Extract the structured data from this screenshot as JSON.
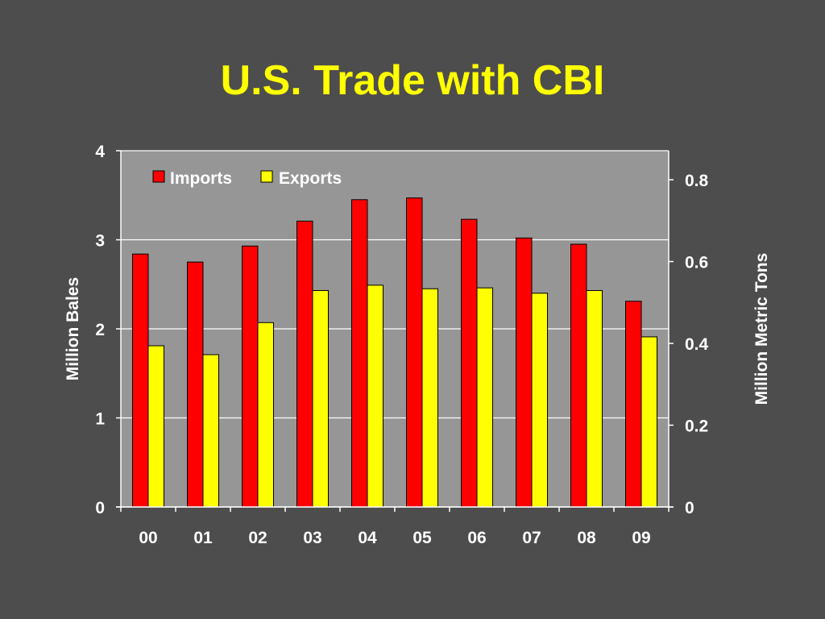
{
  "slide": {
    "title": "U.S. Trade with CBI"
  },
  "chart_data": {
    "type": "bar",
    "title": "",
    "categories": [
      "00",
      "01",
      "02",
      "03",
      "04",
      "05",
      "06",
      "07",
      "08",
      "09"
    ],
    "series": [
      {
        "name": "Imports",
        "axis": "left",
        "color": "#ff0000",
        "values": [
          2.84,
          2.75,
          2.93,
          3.21,
          3.45,
          3.47,
          3.23,
          3.02,
          2.95,
          2.31
        ]
      },
      {
        "name": "Exports",
        "axis": "left",
        "color": "#ffff00",
        "values": [
          1.81,
          1.71,
          2.07,
          2.43,
          2.49,
          2.45,
          2.46,
          2.4,
          2.43,
          1.91
        ]
      }
    ],
    "ylabel": "Million Bales",
    "ylim": [
      0,
      4
    ],
    "yticks": [
      "0",
      "1",
      "2",
      "3",
      "4"
    ],
    "y2label": "Million Metric Tons",
    "y2lim": [
      0,
      0.871
    ],
    "y2ticks": [
      "0",
      "0.2",
      "0.4",
      "0.6",
      "0.8"
    ],
    "grid": true,
    "legend": "top-left",
    "plot_background": "#969696",
    "bar_outline": "#000000"
  }
}
